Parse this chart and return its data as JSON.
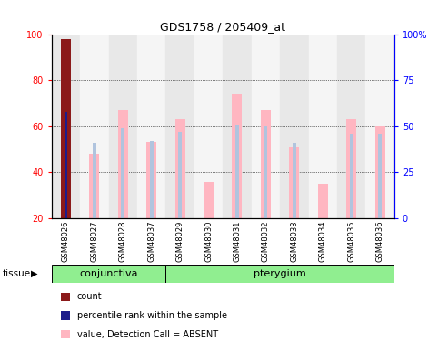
{
  "title": "GDS1758 / 205409_at",
  "samples": [
    "GSM48026",
    "GSM48027",
    "GSM48028",
    "GSM48037",
    "GSM48029",
    "GSM48030",
    "GSM48031",
    "GSM48032",
    "GSM48033",
    "GSM48034",
    "GSM48035",
    "GSM48036"
  ],
  "groups": {
    "conjunctiva": [
      0,
      1,
      2,
      3
    ],
    "pterygium": [
      4,
      5,
      6,
      7,
      8,
      9,
      10,
      11
    ]
  },
  "value_bars": [
    98,
    48,
    67,
    53,
    63,
    36,
    74,
    67,
    51,
    35,
    63,
    60
  ],
  "rank_bars": [
    58,
    41,
    49,
    42,
    47,
    0,
    51,
    50,
    41,
    0,
    46,
    46
  ],
  "count_bar_idx": 0,
  "ylim_left": [
    20,
    100
  ],
  "ylim_right": [
    0,
    100
  ],
  "yticks_left": [
    20,
    40,
    60,
    80,
    100
  ],
  "yticks_right": [
    0,
    25,
    50,
    75,
    100
  ],
  "yticklabels_right": [
    "0",
    "25",
    "50",
    "75",
    "100%"
  ],
  "color_count": "#8B1A1A",
  "color_rank_first": "#1C1C8B",
  "color_value_absent": "#FFB6C1",
  "color_rank_absent": "#B0C4DE",
  "bg_sample_even": "#E8E8E8",
  "bg_sample_odd": "#F5F5F5",
  "bg_group": "#90EE90",
  "group_labels": [
    "conjunctiva",
    "pterygium"
  ],
  "legend_items": [
    {
      "color": "#8B1A1A",
      "label": "count"
    },
    {
      "color": "#1C1C8B",
      "label": "percentile rank within the sample"
    },
    {
      "color": "#FFB6C1",
      "label": "value, Detection Call = ABSENT"
    },
    {
      "color": "#B0C4DE",
      "label": "rank, Detection Call = ABSENT"
    }
  ],
  "tissue_label": "tissue"
}
